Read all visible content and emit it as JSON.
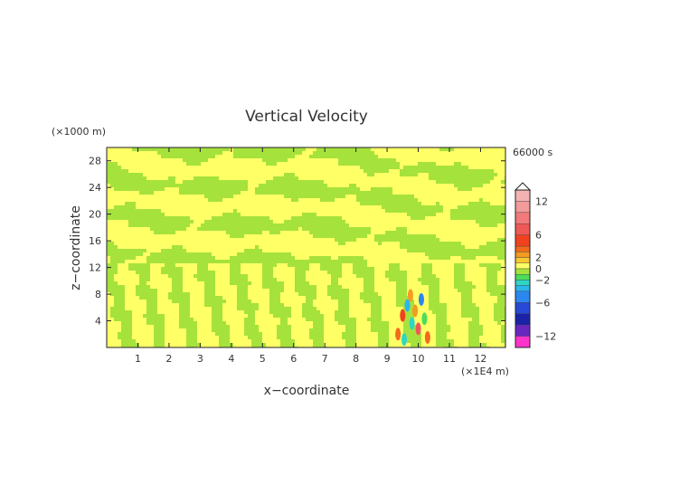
{
  "chart_data": {
    "type": "heatmap",
    "title": "Vertical Velocity",
    "xlabel": "x−coordinate",
    "ylabel": "z−coordinate",
    "x_unit": "(×1E4 m)",
    "y_unit": "(×1000 m)",
    "time_label": "66000 s",
    "xlim": [
      0,
      12.8
    ],
    "ylim": [
      0,
      30
    ],
    "x_ticks": [
      "1",
      "2",
      "3",
      "4",
      "5",
      "6",
      "7",
      "8",
      "9",
      "10",
      "11",
      "12"
    ],
    "y_ticks": [
      "4",
      "8",
      "12",
      "16",
      "20",
      "24",
      "28"
    ],
    "colorbar": {
      "range": [
        -14,
        14
      ],
      "tick_labels": [
        "12",
        "6",
        "2",
        "0",
        "−2",
        "−6",
        "−12"
      ],
      "tick_values": [
        12,
        6,
        2,
        0,
        -2,
        -6,
        -12
      ],
      "levels": [
        {
          "min": 12,
          "max": 14,
          "color": "#f4b3b3"
        },
        {
          "min": 10,
          "max": 12,
          "color": "#f39a9a"
        },
        {
          "min": 8,
          "max": 10,
          "color": "#f27a7a"
        },
        {
          "min": 6,
          "max": 8,
          "color": "#f05858"
        },
        {
          "min": 4,
          "max": 6,
          "color": "#f0421e"
        },
        {
          "min": 3,
          "max": 4,
          "color": "#f26a1a"
        },
        {
          "min": 2,
          "max": 3,
          "color": "#f59a22"
        },
        {
          "min": 1,
          "max": 2,
          "color": "#f8c832"
        },
        {
          "min": 0,
          "max": 1,
          "color": "#ffff66"
        },
        {
          "min": -1,
          "max": 0,
          "color": "#a6e23c"
        },
        {
          "min": -2,
          "max": -1,
          "color": "#4cdc5a"
        },
        {
          "min": -3,
          "max": -2,
          "color": "#2fd5c6"
        },
        {
          "min": -4,
          "max": -3,
          "color": "#2bb6ee"
        },
        {
          "min": -6,
          "max": -4,
          "color": "#2c86f0"
        },
        {
          "min": -8,
          "max": -6,
          "color": "#2749d6"
        },
        {
          "min": -10,
          "max": -8,
          "color": "#1a22a8"
        },
        {
          "min": -12,
          "max": -10,
          "color": "#6a26c0"
        },
        {
          "min": -14,
          "max": -12,
          "color": "#ff33cc"
        }
      ]
    },
    "field_colors": {
      "positive": "#ffff66",
      "negative": "#a6e23c"
    }
  }
}
